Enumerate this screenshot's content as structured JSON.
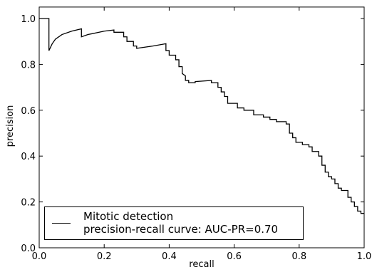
{
  "chart_data": {
    "type": "line",
    "xlabel": "recall",
    "ylabel": "precision",
    "x": [
      0,
      0.03,
      0.03,
      0.04,
      0.05,
      0.07,
      0.1,
      0.13,
      0.13,
      0.15,
      0.2,
      0.23,
      0.23,
      0.26,
      0.26,
      0.27,
      0.27,
      0.29,
      0.29,
      0.3,
      0.3,
      0.35,
      0.39,
      0.39,
      0.4,
      0.4,
      0.42,
      0.42,
      0.43,
      0.43,
      0.44,
      0.44,
      0.45,
      0.45,
      0.46,
      0.46,
      0.48,
      0.48,
      0.53,
      0.53,
      0.55,
      0.55,
      0.56,
      0.56,
      0.57,
      0.57,
      0.58,
      0.58,
      0.61,
      0.61,
      0.63,
      0.63,
      0.66,
      0.66,
      0.69,
      0.69,
      0.71,
      0.71,
      0.73,
      0.73,
      0.76,
      0.76,
      0.77,
      0.77,
      0.78,
      0.78,
      0.79,
      0.79,
      0.81,
      0.81,
      0.83,
      0.83,
      0.84,
      0.84,
      0.86,
      0.86,
      0.87,
      0.87,
      0.88,
      0.88,
      0.89,
      0.89,
      0.9,
      0.9,
      0.91,
      0.91,
      0.92,
      0.92,
      0.93,
      0.93,
      0.95,
      0.95,
      0.96,
      0.96,
      0.97,
      0.97,
      0.98,
      0.98,
      0.99,
      0.99,
      1.0
    ],
    "series": [
      {
        "name": "Mitotic detection\nprecision-recall curve: AUC-PR=0.70",
        "color": "#000000",
        "values": [
          1.0,
          1.0,
          0.86,
          0.89,
          0.91,
          0.93,
          0.945,
          0.955,
          0.92,
          0.93,
          0.945,
          0.95,
          0.94,
          0.94,
          0.92,
          0.92,
          0.9,
          0.9,
          0.88,
          0.88,
          0.87,
          0.88,
          0.89,
          0.86,
          0.86,
          0.84,
          0.84,
          0.82,
          0.82,
          0.79,
          0.79,
          0.76,
          0.75,
          0.73,
          0.73,
          0.72,
          0.72,
          0.725,
          0.73,
          0.72,
          0.72,
          0.7,
          0.7,
          0.68,
          0.68,
          0.66,
          0.66,
          0.63,
          0.63,
          0.61,
          0.61,
          0.6,
          0.6,
          0.58,
          0.58,
          0.57,
          0.57,
          0.56,
          0.56,
          0.55,
          0.55,
          0.54,
          0.54,
          0.5,
          0.5,
          0.48,
          0.48,
          0.46,
          0.46,
          0.45,
          0.45,
          0.44,
          0.44,
          0.42,
          0.42,
          0.4,
          0.4,
          0.36,
          0.36,
          0.33,
          0.33,
          0.31,
          0.31,
          0.3,
          0.3,
          0.28,
          0.28,
          0.26,
          0.26,
          0.25,
          0.25,
          0.22,
          0.22,
          0.2,
          0.2,
          0.18,
          0.18,
          0.16,
          0.16,
          0.15,
          0.15
        ]
      }
    ],
    "xlim": [
      0,
      1
    ],
    "ylim": [
      0,
      1.05
    ],
    "xticks": [
      {
        "value": 0,
        "label": "0.0"
      },
      0.2,
      0.4,
      0.6,
      0.8,
      {
        "value": 1,
        "label": "1.0"
      }
    ],
    "yticks": [
      {
        "value": 0,
        "label": "0.0"
      },
      0.2,
      0.4,
      0.6,
      0.8,
      {
        "value": 1,
        "label": "1.0"
      }
    ],
    "legend": "lower left"
  }
}
